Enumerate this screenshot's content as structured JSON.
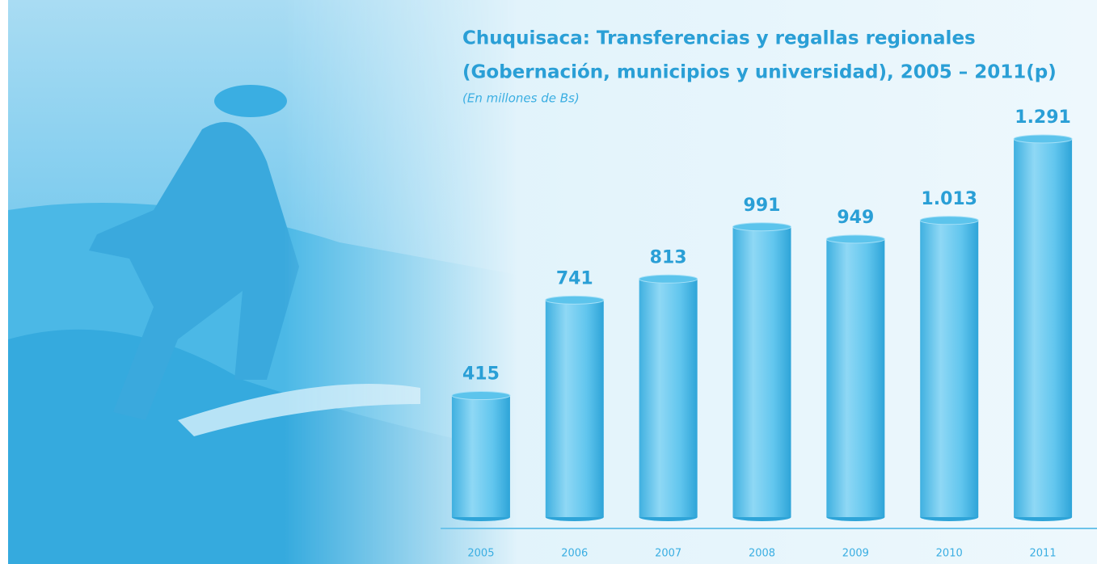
{
  "chart_data": {
    "type": "bar",
    "title_lines": [
      "Chuquisaca: Transferencias y regallas regionales",
      "(Gobernación, municipios y universidad), 2005 – 2011(p)"
    ],
    "subtitle": "(En millones de Bs)",
    "categories": [
      "2005",
      "2006",
      "2007",
      "2008",
      "2009",
      "2010",
      "2011"
    ],
    "values": [
      415,
      741,
      813,
      991,
      949,
      1013,
      1291
    ],
    "value_labels": [
      "415",
      "741",
      "813",
      "991",
      "949",
      "1.013",
      "1.291"
    ],
    "color": "#5cc4ec"
  }
}
